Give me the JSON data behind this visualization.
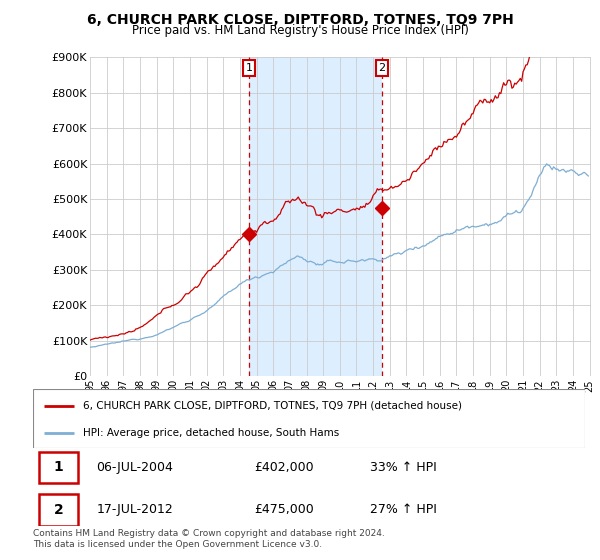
{
  "title": "6, CHURCH PARK CLOSE, DIPTFORD, TOTNES, TQ9 7PH",
  "subtitle": "Price paid vs. HM Land Registry's House Price Index (HPI)",
  "legend_line1": "6, CHURCH PARK CLOSE, DIPTFORD, TOTNES, TQ9 7PH (detached house)",
  "legend_line2": "HPI: Average price, detached house, South Hams",
  "footer": "Contains HM Land Registry data © Crown copyright and database right 2024.\nThis data is licensed under the Open Government Licence v3.0.",
  "sale1_date": "06-JUL-2004",
  "sale1_price": "£402,000",
  "sale1_hpi": "33% ↑ HPI",
  "sale2_date": "17-JUL-2012",
  "sale2_price": "£475,000",
  "sale2_hpi": "27% ↑ HPI",
  "red_color": "#cc0000",
  "blue_color": "#7eaed4",
  "shade_color": "#ddeeff",
  "background_color": "#ffffff",
  "grid_color": "#cccccc",
  "ylim": [
    0,
    900000
  ],
  "yticks": [
    0,
    100000,
    200000,
    300000,
    400000,
    500000,
    600000,
    700000,
    800000,
    900000
  ],
  "ytick_labels": [
    "£0",
    "£100K",
    "£200K",
    "£300K",
    "£400K",
    "£500K",
    "£600K",
    "£700K",
    "£800K",
    "£900K"
  ],
  "sale1_x": 2004.54,
  "sale1_y": 402000,
  "sale2_x": 2012.54,
  "sale2_y": 475000,
  "xmin": 1995,
  "xmax": 2025
}
